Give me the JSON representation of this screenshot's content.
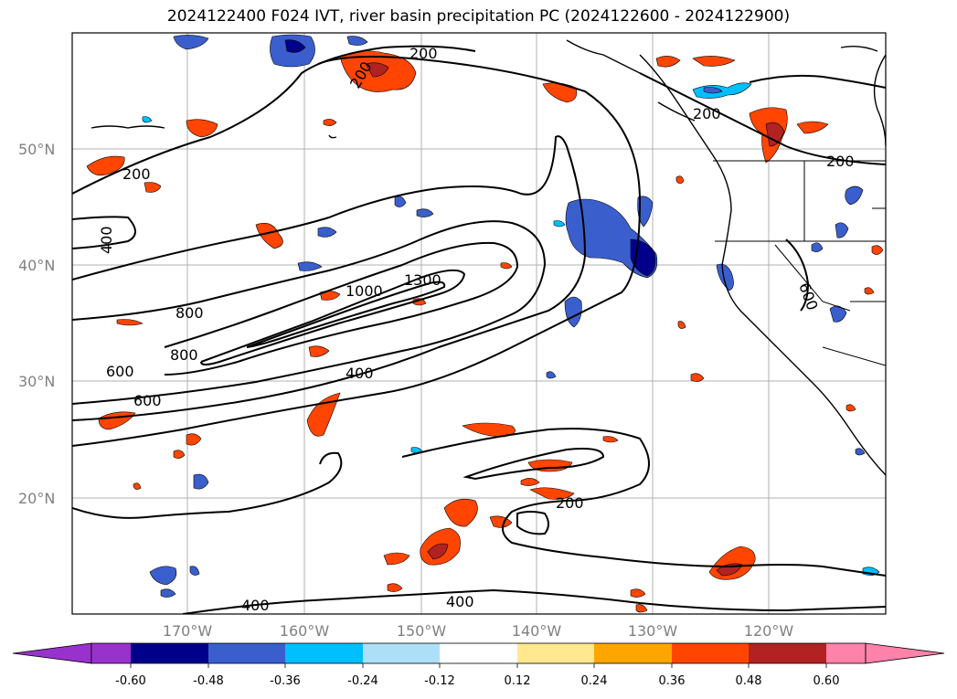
{
  "title": "2024122400 F024 IVT, river basin precipitation PC (2024122600 - 2024122900)",
  "map": {
    "lat_labels": [
      "50°N",
      "40°N",
      "30°N",
      "20°N"
    ],
    "lon_labels": [
      "170°W",
      "160°W",
      "150°W",
      "140°W",
      "130°W",
      "120°W"
    ],
    "contour_labels": [
      "200",
      "200",
      "200",
      "200",
      "200",
      "400",
      "400",
      "400",
      "400",
      "600",
      "600",
      "800",
      "800",
      "1000",
      "1300",
      "200",
      "600"
    ]
  },
  "colorbar": {
    "colors": [
      "#9932CC",
      "#00008B",
      "#3A5FCD",
      "#00BFFF",
      "#ADE0F8",
      "#FFFFFF",
      "#FFE88F",
      "#FFA500",
      "#FF4500",
      "#B22222",
      "#FF82AB"
    ],
    "tick_labels": [
      "-0.60",
      "-0.48",
      "-0.36",
      "-0.24",
      "-0.12",
      "0.12",
      "0.24",
      "0.36",
      "0.48",
      "0.60"
    ]
  }
}
